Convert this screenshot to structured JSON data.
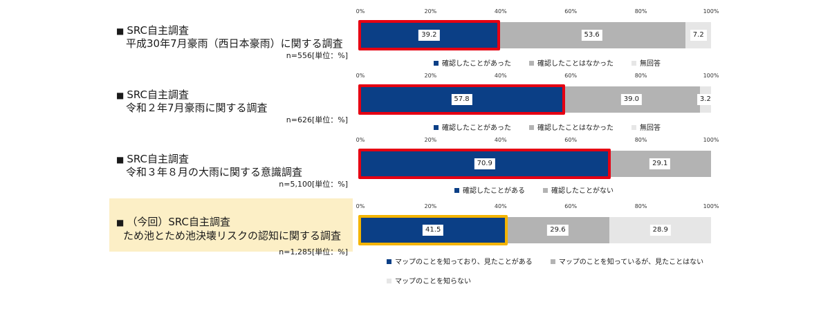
{
  "colors": {
    "confirmed": "#0b3f86",
    "not_confirmed": "#b3b3b3",
    "no_answer": "#e6e6e6",
    "frame_red": "#e60012",
    "frame_gold": "#f4b400",
    "highlight_bg": "#fcefc6"
  },
  "chart_data": [
    {
      "type": "bar",
      "orientation": "horizontal-stacked",
      "title_bullet": "■",
      "title_line1": "SRC自主調査",
      "title_line2": "平成30年7月豪雨（西日本豪雨）に関する調査",
      "note": "n=556[単位：%]",
      "ticks": [
        "0%",
        "20%",
        "40%",
        "60%",
        "80%",
        "100%"
      ],
      "xlim": [
        0,
        100
      ],
      "series": [
        {
          "name": "確認したことがあった",
          "value": 39.2,
          "label": "39.2"
        },
        {
          "name": "確認したことはなかった",
          "value": 53.6,
          "label": "53.6"
        },
        {
          "name": "無回答",
          "value": 7.2,
          "label": "7.2"
        }
      ],
      "highlight_series": 0,
      "highlight_color": "red"
    },
    {
      "type": "bar",
      "orientation": "horizontal-stacked",
      "title_bullet": "■",
      "title_line1": "SRC自主調査",
      "title_line2": "令和２年7月豪雨に関する調査",
      "note": "n=626[単位：%]",
      "ticks": [
        "0%",
        "20%",
        "40%",
        "60%",
        "80%",
        "100%"
      ],
      "xlim": [
        0,
        100
      ],
      "series": [
        {
          "name": "確認したことがあった",
          "value": 57.8,
          "label": "57.8"
        },
        {
          "name": "確認したことはなかった",
          "value": 39.0,
          "label": "39.0"
        },
        {
          "name": "無回答",
          "value": 3.2,
          "label": "3.2"
        }
      ],
      "highlight_series": 0,
      "highlight_color": "red"
    },
    {
      "type": "bar",
      "orientation": "horizontal-stacked",
      "title_bullet": "■",
      "title_line1": "SRC自主調査",
      "title_line2": "令和３年８月の大雨に関する意識調査",
      "note": "n=5,100[単位：%]",
      "ticks": [
        "0%",
        "20%",
        "40%",
        "60%",
        "80%",
        "100%"
      ],
      "xlim": [
        0,
        100
      ],
      "series": [
        {
          "name": "確認したことがある",
          "value": 70.9,
          "label": "70.9"
        },
        {
          "name": "確認したことがない",
          "value": 29.1,
          "label": "29.1"
        }
      ],
      "highlight_series": 0,
      "highlight_color": "red"
    },
    {
      "type": "bar",
      "orientation": "horizontal-stacked",
      "title_bullet": "■",
      "title_line1": "（今回）SRC自主調査",
      "title_line2": "ため池とため池決壊リスクの認知に関する調査",
      "note": "n=1,285[単位：%]",
      "ticks": [
        "0%",
        "20%",
        "40%",
        "60%",
        "80%",
        "100%"
      ],
      "xlim": [
        0,
        100
      ],
      "series": [
        {
          "name": "マップのことを知っており、見たことがある",
          "value": 41.5,
          "label": "41.5"
        },
        {
          "name": "マップのことを知っているが、見たことはない",
          "value": 29.6,
          "label": "29.6"
        },
        {
          "name": "マップのことを知らない",
          "value": 28.9,
          "label": "28.9"
        }
      ],
      "highlight_series": 0,
      "highlight_color": "gold",
      "highlighted_row": true
    }
  ]
}
